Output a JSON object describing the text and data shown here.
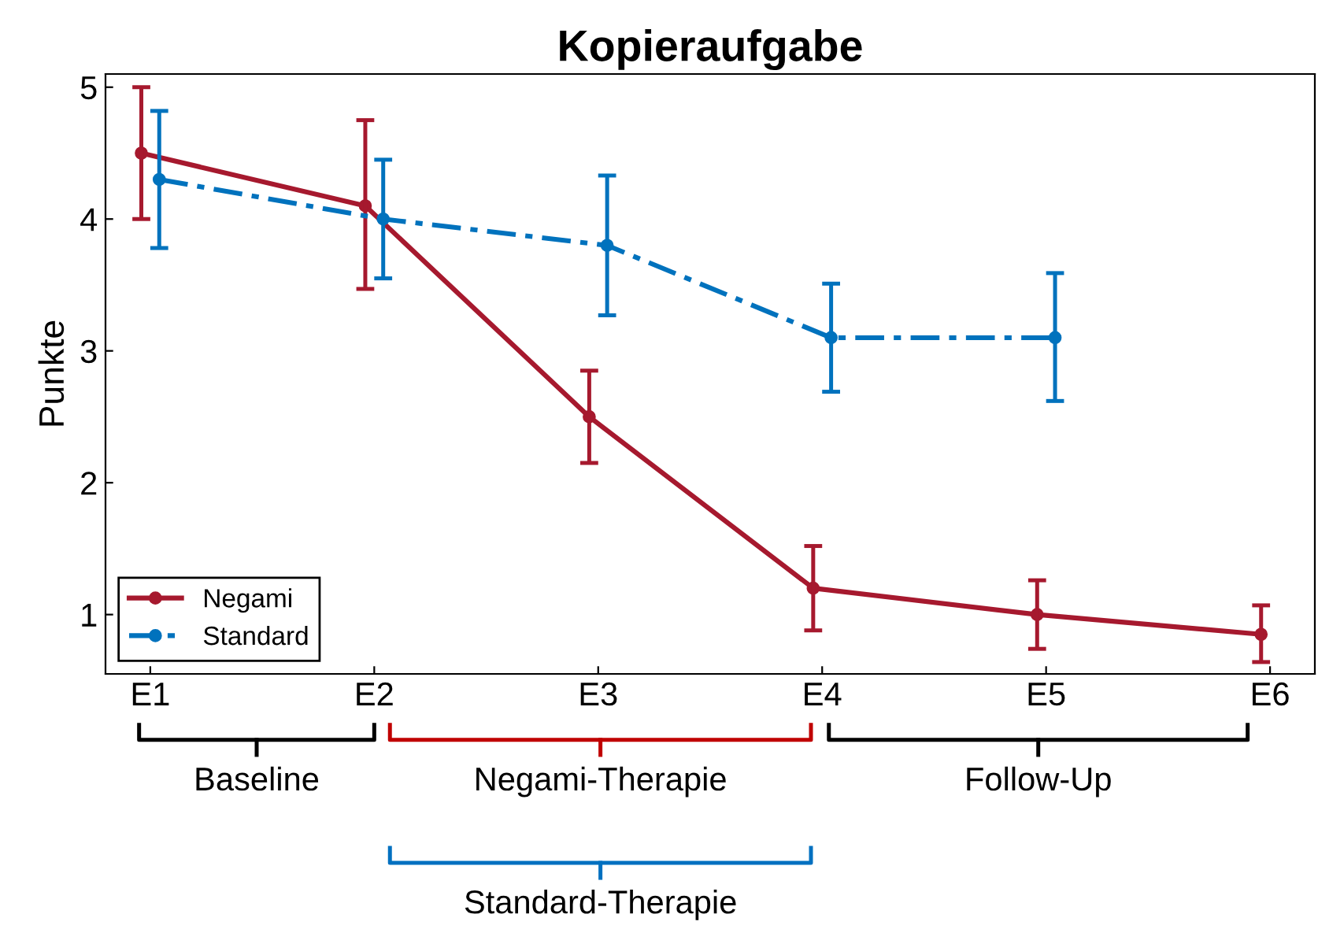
{
  "chart_data": {
    "type": "line",
    "title": "Kopieraufgabe",
    "ylabel": "Punkte",
    "categories": [
      "E1",
      "E2",
      "E3",
      "E4",
      "E5",
      "E6"
    ],
    "ylim": [
      0.55,
      5.1
    ],
    "yticks": [
      1,
      2,
      3,
      4,
      5
    ],
    "series": [
      {
        "name": "Negami",
        "color": "#a6192e",
        "line_style": "solid",
        "values": [
          4.5,
          4.1,
          2.5,
          1.2,
          1.0,
          0.85
        ],
        "errors": [
          [
            4.0,
            5.0
          ],
          [
            3.47,
            4.75
          ],
          [
            2.15,
            2.85
          ],
          [
            0.88,
            1.52
          ],
          [
            0.74,
            1.26
          ],
          [
            0.64,
            1.07
          ]
        ]
      },
      {
        "name": "Standard",
        "color": "#0072bd",
        "line_style": "dashed",
        "values": [
          4.3,
          4.0,
          3.8,
          3.1,
          3.1,
          null
        ],
        "errors": [
          [
            3.78,
            4.82
          ],
          [
            3.55,
            4.45
          ],
          [
            3.27,
            4.33
          ],
          [
            2.69,
            3.51
          ],
          [
            2.62,
            3.59
          ],
          null
        ]
      }
    ],
    "marker": "circle",
    "grid": false,
    "legend": "bottom left",
    "annotations": [
      "Baseline",
      "Negami-Therapie",
      "Follow-Up",
      "Standard-Therapie"
    ]
  }
}
